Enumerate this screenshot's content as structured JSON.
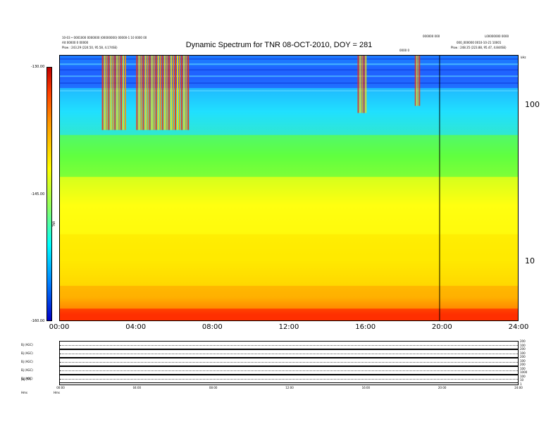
{
  "header": {
    "title": "Dynamic Spectrum for TNR 08-OCT-2010, DOY = 281",
    "left_line1": "10-03 • 0001000 0000000 (00000000) 00000-1 10 0000 00",
    "left_line2": "Alt 00000 0 00000",
    "left_line3": "Plow : 243.29 (224.50, 95.58, 4.174SE)",
    "center_small": "0000 0",
    "right_line0": "000000 000",
    "right_line0b": "L00000000 0000",
    "right_line1": "000_000000 0010-10-21 10001",
    "right_line2": "Plow : 248.35 (223.88, 95.47, 4.844SE)"
  },
  "colorbar": {
    "label": "TNR",
    "ticks": [
      {
        "label": "-130.00",
        "frac": 0.0
      },
      {
        "label": "-145.00",
        "frac": 0.5
      },
      {
        "label": "-160.00",
        "frac": 1.0
      }
    ]
  },
  "chart_data": {
    "type": "heatmap",
    "title": "Dynamic Spectrum for TNR 08-OCT-2010, DOY = 281",
    "x": {
      "label": "",
      "range": [
        "00:00",
        "24:00"
      ],
      "ticks": [
        "00:00",
        "04:00",
        "08:00",
        "12:00",
        "16:00",
        "20:00",
        "24:00"
      ]
    },
    "y": {
      "label": "kHz",
      "scale": "log",
      "range": [
        4.2,
        210
      ],
      "ticks": [
        10,
        100
      ]
    },
    "colorbar_range": [
      -160,
      -130
    ],
    "colormap": [
      "#0000c8",
      "#0080ff",
      "#00ffff",
      "#90ff60",
      "#ffff00",
      "#ff9900",
      "#ff4000",
      "#c00000"
    ],
    "bands": [
      {
        "f_low": 180,
        "f_high": 210,
        "level": "#1e78ff"
      },
      {
        "f_low": 130,
        "f_high": 180,
        "level": "#2060ff"
      },
      {
        "f_low": 65,
        "f_high": 130,
        "level": "#20e0ff"
      },
      {
        "f_low": 35,
        "f_high": 65,
        "level": "#60ff40"
      },
      {
        "f_low": 15,
        "f_high": 35,
        "level": "#ffff10"
      },
      {
        "f_low": 7,
        "f_high": 15,
        "level": "#ffea00"
      },
      {
        "f_low": 5,
        "f_high": 7,
        "level": "#ffb000"
      },
      {
        "f_low": 4.2,
        "f_high": 5,
        "level": "#ff3000"
      }
    ],
    "bursts": [
      {
        "t_start": 2.2,
        "t_end": 3.5,
        "f_low": 70,
        "f_high": 210
      },
      {
        "t_start": 4.0,
        "t_end": 6.8,
        "f_low": 70,
        "f_high": 210
      },
      {
        "t_start": 15.6,
        "t_end": 16.1,
        "f_low": 90,
        "f_high": 210
      },
      {
        "t_start": 18.6,
        "t_end": 18.9,
        "f_low": 100,
        "f_high": 210
      }
    ],
    "markers": [
      {
        "t": 19.9
      }
    ]
  },
  "bottom": {
    "panel_labels": [
      "Bj (AGC)",
      "Bj (AGC)",
      "Bj (AGC)",
      "Bj (AGC)",
      "Ej (AGC)",
      "|Bj (TF)"
    ],
    "axis_label": "Hms",
    "axis_label2": "Hms",
    "times": [
      "00:00",
      "04:00",
      "08:00",
      "12:00",
      "16:00",
      "20:00",
      "24:00"
    ],
    "right_labels": [
      "200",
      "100",
      "200",
      "100",
      "200",
      "100",
      "200",
      "100",
      "1000",
      "100",
      "10",
      "1"
    ]
  }
}
